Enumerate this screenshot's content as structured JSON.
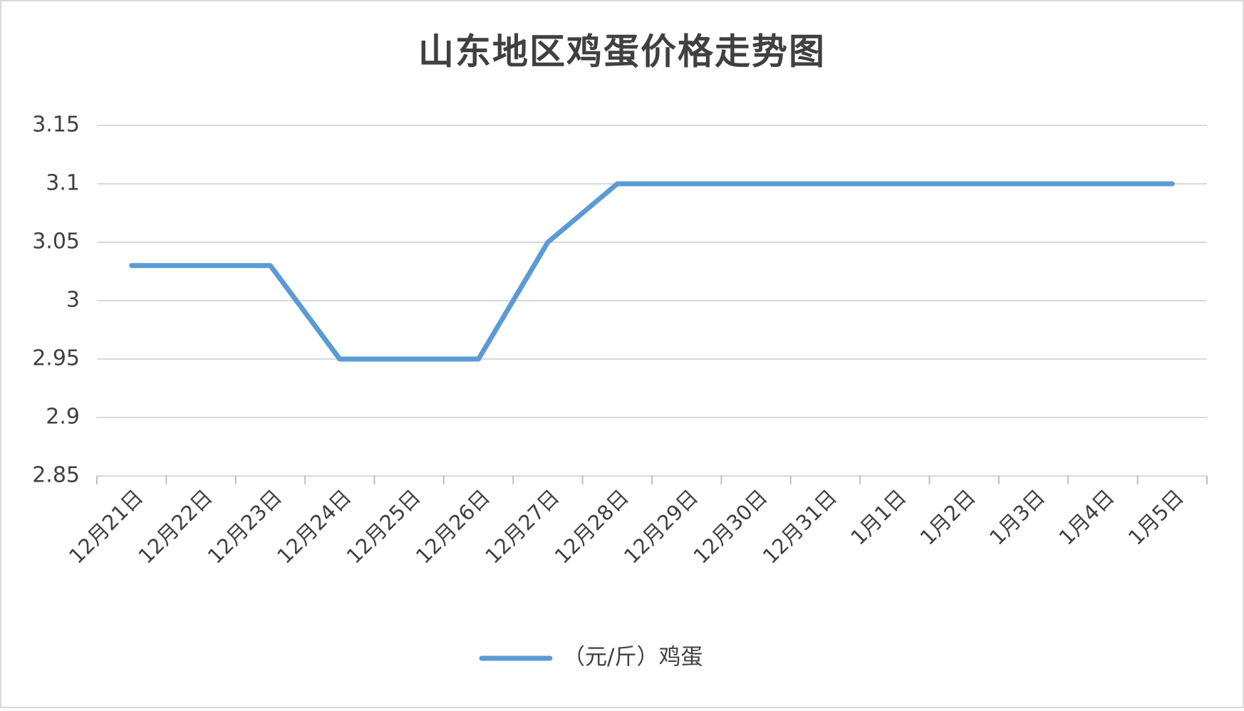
{
  "chart_data": {
    "type": "line",
    "title": "山东地区鸡蛋价格走势图",
    "categories": [
      "12月21日",
      "12月22日",
      "12月23日",
      "12月24日",
      "12月25日",
      "12月26日",
      "12月27日",
      "12月28日",
      "12月29日",
      "12月30日",
      "12月31日",
      "1月1日",
      "1月2日",
      "1月3日",
      "1月4日",
      "1月5日"
    ],
    "series": [
      {
        "name": "（元/斤）鸡蛋",
        "color": "#5b9bd5",
        "values": [
          3.03,
          3.03,
          3.03,
          2.95,
          2.95,
          2.95,
          3.05,
          3.1,
          3.1,
          3.1,
          3.1,
          3.1,
          3.1,
          3.1,
          3.1,
          3.1
        ]
      }
    ],
    "ylim": [
      2.85,
      3.15
    ],
    "yticks": [
      2.85,
      2.9,
      2.95,
      3,
      3.05,
      3.1,
      3.15
    ],
    "grid": true,
    "legend": "bottom"
  }
}
